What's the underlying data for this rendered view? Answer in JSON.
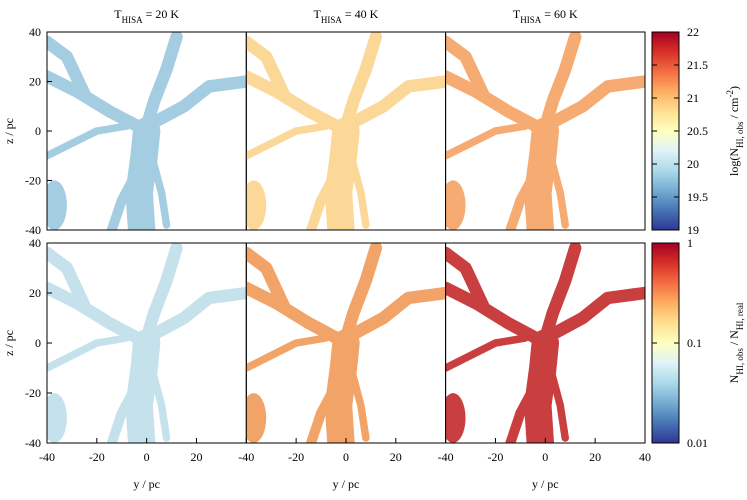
{
  "chart_data": [
    {
      "type": "image",
      "title": [
        {
          "text": "T"
        },
        {
          "text": "HISA",
          "shift": "sub"
        },
        {
          "text": " = 20 K"
        }
      ],
      "color": "#9cc8df",
      "xlim": [
        -40,
        40
      ],
      "ylim": [
        -40,
        40
      ],
      "yticks": [
        -40,
        -20,
        0,
        20,
        40
      ],
      "ylabel": "z / pc"
    },
    {
      "type": "image",
      "title": [
        {
          "text": "T"
        },
        {
          "text": "HISA",
          "shift": "sub"
        },
        {
          "text": " = 40 K"
        }
      ],
      "color": "#fbd48c",
      "xlim": [
        -40,
        40
      ],
      "ylim": [
        -40,
        40
      ]
    },
    {
      "type": "image",
      "title": [
        {
          "text": "T"
        },
        {
          "text": "HISA",
          "shift": "sub"
        },
        {
          "text": " = 60 K"
        }
      ],
      "color": "#f4a262",
      "xlim": [
        -40,
        40
      ],
      "ylim": [
        -40,
        40
      ]
    },
    {
      "type": "image",
      "color": "#bfdfea",
      "xlim": [
        -40,
        40
      ],
      "ylim": [
        -40,
        40
      ],
      "xticks": [
        -40,
        -20,
        0,
        20
      ],
      "yticks": [
        -40,
        -20,
        0,
        20,
        40
      ],
      "xlabel": "y / pc",
      "ylabel": "z / pc"
    },
    {
      "type": "image",
      "color": "#f09a58",
      "xlim": [
        -40,
        40
      ],
      "ylim": [
        -40,
        40
      ],
      "xticks": [
        -40,
        -20,
        0,
        20
      ],
      "xlabel": "y / pc"
    },
    {
      "type": "image",
      "color": "#c42a2b",
      "xlim": [
        -40,
        40
      ],
      "ylim": [
        -40,
        40
      ],
      "xticks": [
        -40,
        -20,
        0,
        20,
        40
      ],
      "xlabel": "y / pc"
    },
    {
      "type": "colorbar",
      "label": [
        {
          "text": "log(N"
        },
        {
          "text": "HI, obs",
          "shift": "sub"
        },
        {
          "text": " / cm"
        },
        {
          "text": "-2",
          "shift": "super"
        },
        {
          "text": ")"
        }
      ],
      "clim": [
        19,
        22
      ],
      "ticks": [
        19,
        19.5,
        20,
        20.5,
        21,
        21.5,
        22
      ],
      "log": false,
      "colormap": [
        "#313695",
        "#4575b4",
        "#74add1",
        "#abd9e9",
        "#e0f3f8",
        "#ffffbf",
        "#fee090",
        "#fdae61",
        "#f46d43",
        "#d73027",
        "#a50026"
      ]
    },
    {
      "type": "colorbar",
      "label": [
        {
          "text": "N"
        },
        {
          "text": "HI, obs",
          "shift": "sub"
        },
        {
          "text": " / N"
        },
        {
          "text": "HI, real",
          "shift": "sub"
        }
      ],
      "clim": [
        0.01,
        1
      ],
      "ticks": [
        0.01,
        0.1,
        1
      ],
      "log": true,
      "colormap": [
        "#313695",
        "#4575b4",
        "#74add1",
        "#abd9e9",
        "#e0f3f8",
        "#ffffbf",
        "#fee090",
        "#fdae61",
        "#f46d43",
        "#d73027",
        "#a50026"
      ]
    }
  ]
}
